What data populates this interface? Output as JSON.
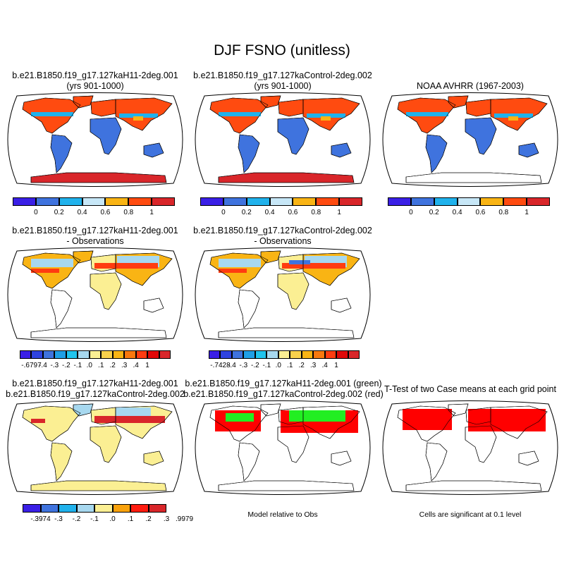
{
  "title": "DJF FSNO (unitless)",
  "panels": [
    {
      "id": "case1",
      "title1": "b.e21.B1850.f19_g17.127kaH11-2deg.001",
      "title2": "(yrs 901-1000)",
      "style": "abs"
    },
    {
      "id": "case2",
      "title1": "b.e21.B1850.f19_g17.127kaControl-2deg.002",
      "title2": "(yrs 901-1000)",
      "style": "abs"
    },
    {
      "id": "obs",
      "title1": "NOAA AVHRR (1967-2003)",
      "title2": "",
      "style": "obs"
    },
    {
      "id": "diff1",
      "title1": "b.e21.B1850.f19_g17.127kaH11-2deg.001",
      "title2": "- Observations",
      "style": "diff"
    },
    {
      "id": "diff2",
      "title1": "b.e21.B1850.f19_g17.127kaControl-2deg.002",
      "title2": "- Observations",
      "style": "diff2"
    },
    {
      "id": "casediff",
      "title1": "b.e21.B1850.f19_g17.127kaH11-2deg.001",
      "title2": "b.e21.B1850.f19_g17.127kaControl-2deg.002",
      "style": "cdiff"
    },
    {
      "id": "rel",
      "title1": "b.e21.B1850.f19_g17.127kaH11-2deg.001 (green)",
      "title2": "b.e21.B1850.f19_g17.127kaControl-2deg.002 (red)",
      "style": "rel",
      "caption": "Model relative to Obs"
    },
    {
      "id": "ttest",
      "title1": "T-Test of two Case means at each grid point",
      "title2": "",
      "style": "ttest",
      "caption": "Cells are significant at 0.1 level"
    }
  ],
  "colorbars": {
    "abs": {
      "colors": [
        "#3a1fe6",
        "#3f73de",
        "#20b2ec",
        "#c7e7f7",
        "#f9b414",
        "#ff4b10",
        "#d9262a"
      ],
      "labels": [
        "0",
        "0.2",
        "0.4",
        "0.6",
        "0.8",
        "1"
      ]
    },
    "diff1": {
      "colors": [
        "#3a1fe6",
        "#2f43e0",
        "#3f73de",
        "#1f9fe6",
        "#20c4ee",
        "#a7d8ef",
        "#fbef93",
        "#fad24c",
        "#f9b414",
        "#f9780e",
        "#ff3c10",
        "#e00808",
        "#d9262a"
      ],
      "labels": [
        "-.6797",
        "-.4",
        "-.3",
        "-.2",
        "-.1",
        ".0",
        ".1",
        ".2",
        ".3",
        ".4",
        "1"
      ]
    },
    "diff2": {
      "colors": [
        "#3a1fe6",
        "#2f43e0",
        "#3f73de",
        "#1f9fe6",
        "#20c4ee",
        "#a7d8ef",
        "#fbef93",
        "#fad24c",
        "#f9b414",
        "#f9780e",
        "#ff3c10",
        "#e00808",
        "#d9262a"
      ],
      "labels": [
        "-.7428",
        "-.4",
        "-.3",
        "-.2",
        "-.1",
        ".0",
        ".1",
        ".2",
        ".3",
        ".4",
        "1"
      ]
    },
    "casediff": {
      "colors": [
        "#3a1fe6",
        "#3f73de",
        "#20b2ec",
        "#a7d8ef",
        "#fbef93",
        "#f9a20c",
        "#ff1c10",
        "#d9262a"
      ],
      "labels": [
        "-.3974",
        "-.3",
        "-.2",
        "-.1",
        ".0",
        ".1",
        ".2",
        ".3",
        ".9979"
      ]
    }
  },
  "chart_data": [
    {
      "type": "heatmap",
      "title": "b.e21.B1850.f19_g17.127kaH11-2deg.001 (yrs 901-1000)",
      "levels": [
        0,
        0.2,
        0.4,
        0.6,
        0.8,
        1
      ],
      "description_values": {
        "northern_high_latitudes": 1.0,
        "antarctica": 1.0,
        "tropics": 0.1
      }
    },
    {
      "type": "heatmap",
      "title": "b.e21.B1850.f19_g17.127kaControl-2deg.002 (yrs 901-1000)",
      "levels": [
        0,
        0.2,
        0.4,
        0.6,
        0.8,
        1
      ],
      "description_values": {
        "northern_high_latitudes": 1.0,
        "antarctica": 1.0,
        "tropics": 0.1
      }
    },
    {
      "type": "heatmap",
      "title": "NOAA AVHRR (1967-2003)",
      "levels": [
        0,
        0.2,
        0.4,
        0.6,
        0.8,
        1
      ]
    },
    {
      "type": "heatmap",
      "title": "b.e21.B1850.f19_g17.127kaH11-2deg.001 - Observations",
      "levels": [
        -0.6797,
        -0.4,
        -0.3,
        -0.2,
        -0.1,
        0.0,
        0.1,
        0.2,
        0.3,
        0.4,
        1
      ]
    },
    {
      "type": "heatmap",
      "title": "b.e21.B1850.f19_g17.127kaControl-2deg.002 - Observations",
      "levels": [
        -0.7428,
        -0.4,
        -0.3,
        -0.2,
        -0.1,
        0.0,
        0.1,
        0.2,
        0.3,
        0.4,
        1
      ]
    },
    {
      "type": "heatmap",
      "title": "b.e21.B1850.f19_g17.127kaH11-2deg.001 b.e21.B1850.f19_g17.127kaControl-2deg.002",
      "levels": [
        -0.3974,
        -0.3,
        -0.2,
        -0.1,
        0.0,
        0.1,
        0.2,
        0.3,
        0.9979
      ]
    },
    {
      "type": "heatmap",
      "title": "b.e21.B1850.f19_g17.127kaH11-2deg.001 (green) b.e21.B1850.f19_g17.127kaControl-2deg.002 (red)",
      "series": [
        {
          "name": "green"
        },
        {
          "name": "red"
        }
      ]
    },
    {
      "type": "heatmap",
      "title": "T-Test of two Case means at each grid point"
    }
  ]
}
